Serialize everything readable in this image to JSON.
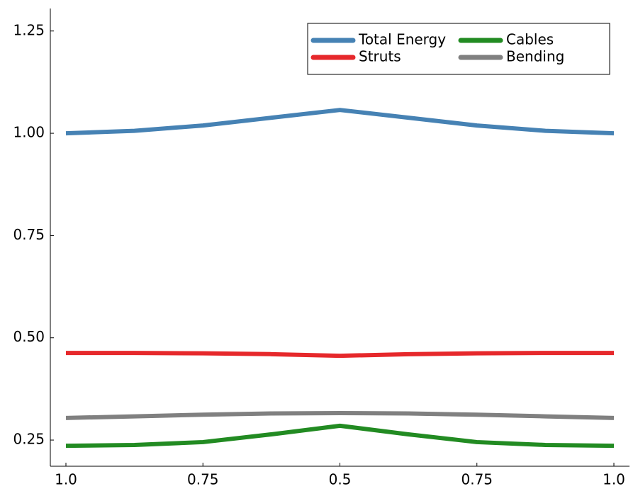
{
  "chart_data": {
    "type": "line",
    "categories": [
      "1.0",
      null,
      "0.75",
      null,
      "0.5",
      null,
      "0.75",
      null,
      "1.0"
    ],
    "series": [
      {
        "name": "Total Energy",
        "color": "#4682b4",
        "values": [
          1.0,
          1.006,
          1.019,
          1.038,
          1.057,
          1.038,
          1.019,
          1.006,
          1.0
        ]
      },
      {
        "name": "Cables",
        "color": "#228b22",
        "values": [
          0.236,
          0.238,
          0.245,
          0.264,
          0.285,
          0.264,
          0.245,
          0.238,
          0.236
        ]
      },
      {
        "name": "Struts",
        "color": "#e6282b",
        "values": [
          0.463,
          0.463,
          0.462,
          0.46,
          0.456,
          0.46,
          0.462,
          0.463,
          0.463
        ]
      },
      {
        "name": "Bending",
        "color": "#808080",
        "values": [
          0.304,
          0.308,
          0.312,
          0.315,
          0.316,
          0.315,
          0.312,
          0.308,
          0.304
        ]
      }
    ],
    "ylim": [
      0.186,
      1.305
    ],
    "yticks": [
      0.25,
      {
        "value": 0.5,
        "label": "0.50"
      },
      0.75,
      {
        "value": 1.0,
        "label": "1.00"
      },
      1.25
    ],
    "grid": false,
    "legend": "top right"
  }
}
